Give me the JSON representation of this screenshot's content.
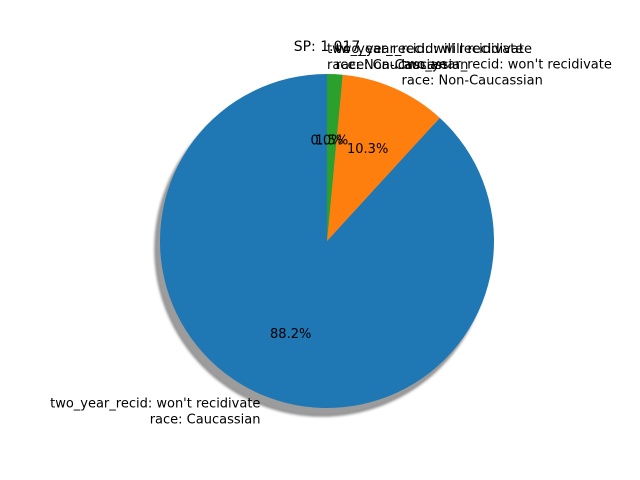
{
  "chart_data": {
    "type": "pie",
    "title": "SP: 1.017",
    "slices": [
      {
        "label": "two_year_recid: won't recidivate\nrace: Caucassian",
        "value": 88.2,
        "pct_label": "88.2%",
        "color": "#1f77b4"
      },
      {
        "label": "two_year_recid: won't recidivate\nrace: Non-Caucassian",
        "value": 10.3,
        "pct_label": "10.3%",
        "color": "#ff7f0e"
      },
      {
        "label": "two_year_recid: will recidivate\nrace: Caucassian",
        "value": 1.5,
        "pct_label": "1.5%",
        "color": "#2ca02c"
      },
      {
        "label": "two_year_recid: will recidivate\nrace: Non-Caucassian",
        "value": 0.0,
        "pct_label": "0.0%",
        "color": "#d62728"
      }
    ],
    "start_angle_deg": 90,
    "direction": "counterclockwise",
    "shadow": true,
    "legend": "none"
  }
}
